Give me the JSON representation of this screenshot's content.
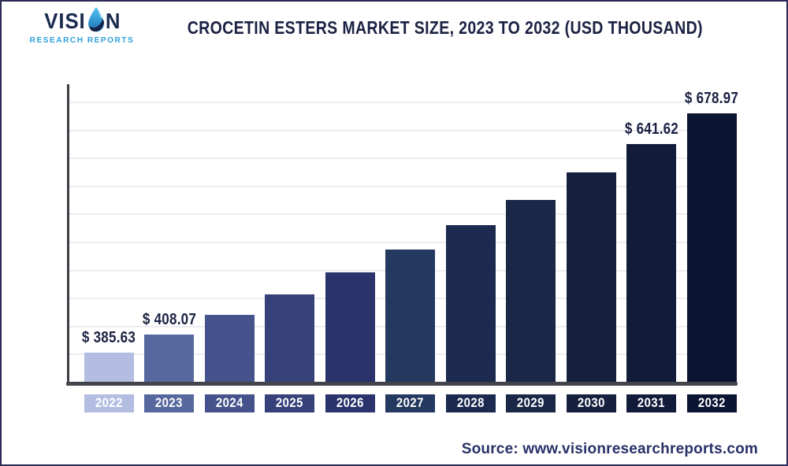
{
  "header": {
    "logo": {
      "brand_prefix": "VISI",
      "brand_suffix": "N",
      "subtitle": "RESEARCH REPORTS"
    },
    "title": "CROCETIN ESTERS MARKET SIZE, 2023 TO 2032 (USD THOUSAND)"
  },
  "footer": {
    "source": "Source: www.visionresearchreports.com"
  },
  "colors": {
    "border_navy": "#2b2a56",
    "title_navy": "#1b2142",
    "axis_gray": "#43434b",
    "gridline_gray": "#ededf1",
    "logo_blue": "#2d9fd8",
    "source_navy": "#283169"
  },
  "chart_data": {
    "type": "bar",
    "title": "Crocetin Esters Market Size, 2023 to 2032 (USD Thousand)",
    "unit": "USD Thousand",
    "categories": [
      "2022",
      "2023",
      "2024",
      "2025",
      "2026",
      "2027",
      "2028",
      "2029",
      "2030",
      "2031",
      "2032"
    ],
    "values": [
      385.63,
      408.07,
      431.82,
      456.95,
      483.54,
      511.68,
      541.46,
      572.97,
      606.32,
      641.62,
      678.97
    ],
    "data_labels": [
      "$ 385.63",
      "$ 408.07",
      null,
      null,
      null,
      null,
      null,
      null,
      null,
      "$ 641.62",
      "$ 678.97"
    ],
    "bar_colors": [
      "#b2bde1",
      "#56689d",
      "#45528b",
      "#36417a",
      "#2b336c",
      "#24395f",
      "#1b2a4e",
      "#1b2747",
      "#16203e",
      "#121b39",
      "#0c1433"
    ],
    "ylim": [
      350,
      700
    ],
    "grid": true,
    "gridline_count": 10,
    "legend": false,
    "xlabel": "",
    "ylabel": ""
  }
}
